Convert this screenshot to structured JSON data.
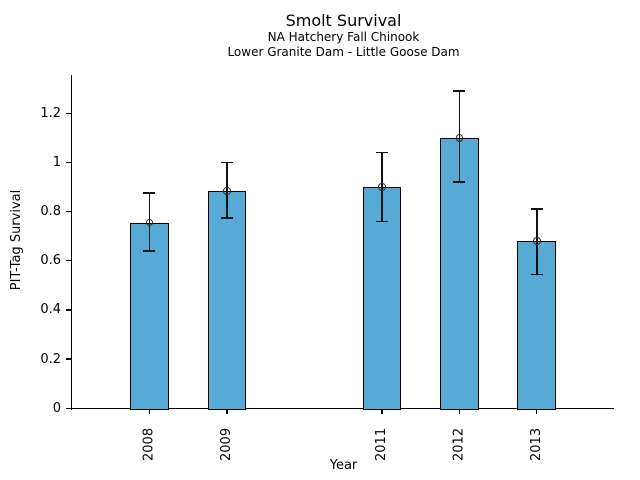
{
  "figure": {
    "title": "Smolt Survival",
    "subtitle1": "NA Hatchery Fall Chinook",
    "subtitle2": "Lower Granite Dam - Little Goose Dam",
    "xlabel": "Year",
    "ylabel": "PIT-Tag Survival"
  },
  "chart_data": {
    "type": "bar",
    "title": "Smolt Survival",
    "subtitle_lines": [
      "NA Hatchery Fall Chinook",
      "Lower Granite Dam - Little Goose Dam"
    ],
    "xlabel": "Year",
    "ylabel": "PIT-Tag Survival",
    "categories": [
      2008,
      2009,
      2011,
      2012,
      2013
    ],
    "values": [
      0.755,
      0.885,
      0.9,
      1.1,
      0.68
    ],
    "error_low": [
      0.64,
      0.775,
      0.76,
      0.92,
      0.545
    ],
    "error_high": [
      0.875,
      1.0,
      1.04,
      1.29,
      0.81
    ],
    "bar_width_years": 0.5,
    "x_range": [
      2007,
      2014
    ],
    "ylim": [
      0,
      1.356
    ],
    "yticks": [
      0,
      0.2,
      0.4,
      0.6,
      0.8,
      1,
      1.2
    ],
    "grid": false,
    "legend": false,
    "bar_color": "#57AAD5",
    "bar_edge_color": "#000000",
    "error_color": "#111111",
    "marker": "open-circle"
  }
}
